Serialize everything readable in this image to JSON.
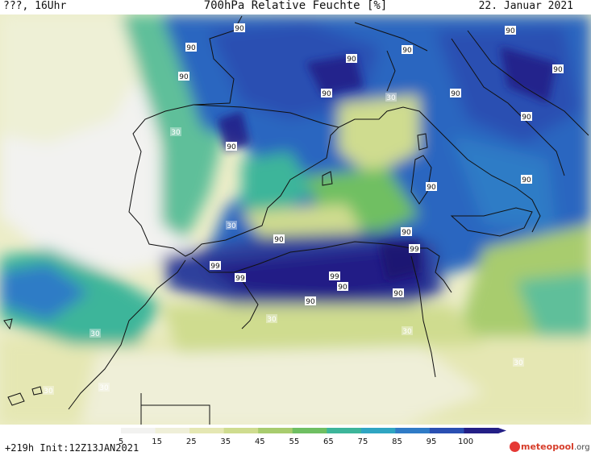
{
  "header": {
    "left": "???, 16Uhr",
    "title": "700hPa Relative Feuchte [%]",
    "date": "22. Januar 2021"
  },
  "footer": {
    "run_info": "+219h  Init:12Z13JAN2021",
    "logo_text": "meteopool",
    "logo_suffix": ".org"
  },
  "colorbar": {
    "ticks": [
      "5",
      "15",
      "25",
      "35",
      "45",
      "55",
      "65",
      "75",
      "85",
      "95",
      "100"
    ],
    "colors": [
      "#f2f2f0",
      "#efefd8",
      "#e5e7b3",
      "#cfdc8f",
      "#a8cc6e",
      "#6fbf62",
      "#3db59a",
      "#2fa5c2",
      "#2f7bc6",
      "#2a4fb2",
      "#231f86"
    ]
  },
  "contour_labels": [
    {
      "text": "90"
    },
    {
      "text": "90"
    },
    {
      "text": "90"
    },
    {
      "text": "90"
    },
    {
      "text": "90"
    },
    {
      "text": "90"
    },
    {
      "text": "90"
    },
    {
      "text": "90"
    },
    {
      "text": "90"
    },
    {
      "text": "90"
    },
    {
      "text": "90"
    },
    {
      "text": "90"
    },
    {
      "text": "90"
    },
    {
      "text": "90"
    },
    {
      "text": "90"
    },
    {
      "text": "90"
    },
    {
      "text": "90"
    },
    {
      "text": "90"
    },
    {
      "text": "99"
    },
    {
      "text": "99"
    },
    {
      "text": "99"
    },
    {
      "text": "99"
    },
    {
      "text": "30"
    },
    {
      "text": "30"
    },
    {
      "text": "30"
    },
    {
      "text": "30"
    },
    {
      "text": "30"
    },
    {
      "text": "30"
    },
    {
      "text": "30"
    },
    {
      "text": "30"
    },
    {
      "text": "30"
    }
  ]
}
